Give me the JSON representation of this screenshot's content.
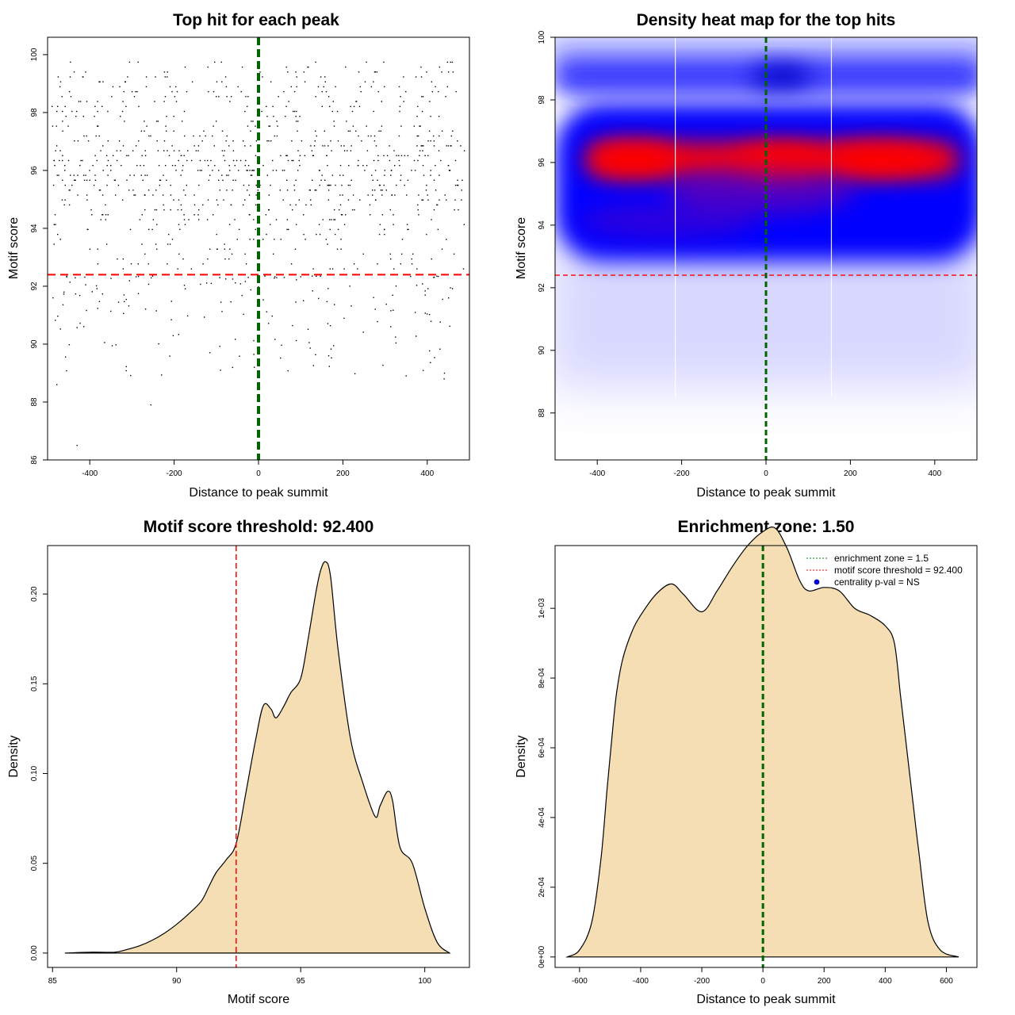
{
  "chart_data": [
    {
      "type": "scatter",
      "title": "Top hit for each peak",
      "xlabel": "Distance to peak summit",
      "ylabel": "Motif score",
      "xlim": [
        -500,
        500
      ],
      "ylim": [
        86,
        100.6
      ],
      "xticks": [
        -400,
        -200,
        0,
        200,
        400
      ],
      "yticks": [
        86,
        88,
        90,
        92,
        94,
        96,
        98,
        100
      ],
      "reference_lines": {
        "vertical_x": 0,
        "vertical_color": "#006400",
        "horizontal_y": 92.4,
        "horizontal_color": "#ff0000"
      },
      "point_color": "#000000",
      "point_summary": "about 3000 points spread across x -490 to 490, concentrated between scores 92.5 and 99.7 on discrete score levels; sparse points below 92.4 down to 86.5"
    },
    {
      "type": "heatmap",
      "title": "Density heat map for the top hits",
      "xlabel": "Distance to peak summit",
      "ylabel": "Motif score",
      "xlim": [
        -500,
        500
      ],
      "ylim": [
        86.5,
        100
      ],
      "xticks": [
        -400,
        -200,
        0,
        200,
        400
      ],
      "yticks": [
        88,
        90,
        92,
        94,
        96,
        98,
        100
      ],
      "colors": [
        "#ffffff",
        "#0000ff",
        "#ff0000"
      ],
      "density_summary": {
        "peak_band": {
          "y": 96.1,
          "level": "red",
          "x_from": -430,
          "x_to": 490
        },
        "high_band": {
          "y_from": 93.2,
          "y_to": 97.6,
          "level": "blue"
        },
        "upper_band": {
          "y": 98.8,
          "level": "blue"
        },
        "low_region": {
          "y_from": 86.5,
          "y_to": 92.5,
          "level": "light blue to white"
        }
      },
      "white_vertical_lines_x": [
        -215,
        155
      ],
      "reference_lines": {
        "vertical_x": 0,
        "vertical_color": "#006400",
        "horizontal_y": 92.4,
        "horizontal_color": "#ff0000"
      }
    },
    {
      "type": "area",
      "title": "Motif score threshold: 92.400",
      "xlabel": "Motif score",
      "ylabel": "Density",
      "xlim": [
        84.8,
        101.8
      ],
      "ylim": [
        -0.008,
        0.227
      ],
      "xticks": [
        85,
        90,
        95,
        100
      ],
      "yticks": [
        "0.00",
        "0.05",
        "0.10",
        "0.15",
        "0.20"
      ],
      "fill": "#f5deb3",
      "threshold_x": 92.4,
      "threshold_color": "#ff0000",
      "x": [
        85.5,
        86.5,
        87.5,
        88.0,
        88.5,
        89.0,
        89.5,
        90.0,
        90.5,
        91.0,
        91.3,
        91.6,
        92.0,
        92.4,
        92.8,
        93.2,
        93.5,
        93.8,
        94.0,
        94.3,
        94.6,
        95.0,
        95.3,
        95.6,
        95.8,
        96.0,
        96.2,
        96.5,
        97.0,
        97.5,
        98.0,
        98.2,
        98.5,
        98.7,
        99.0,
        99.5,
        100.0,
        100.5,
        101.0
      ],
      "y": [
        0.0,
        0.0005,
        0.0005,
        0.002,
        0.004,
        0.007,
        0.011,
        0.016,
        0.022,
        0.029,
        0.037,
        0.045,
        0.052,
        0.061,
        0.09,
        0.12,
        0.138,
        0.136,
        0.131,
        0.137,
        0.145,
        0.153,
        0.175,
        0.2,
        0.213,
        0.218,
        0.21,
        0.17,
        0.12,
        0.095,
        0.076,
        0.082,
        0.09,
        0.085,
        0.059,
        0.05,
        0.025,
        0.006,
        0.0
      ]
    },
    {
      "type": "area",
      "title": "Enrichment zone: 1.50",
      "xlabel": "Distance to peak summit",
      "ylabel": "Density",
      "xlim": [
        -680,
        700
      ],
      "ylim": [
        -3e-05,
        0.00118
      ],
      "xticks": [
        -600,
        -400,
        -200,
        0,
        200,
        400,
        600
      ],
      "yticks": [
        "0e+00",
        "2e-04",
        "4e-04",
        "6e-04",
        "8e-04",
        "1e-03"
      ],
      "fill": "#f5deb3",
      "vertical_x": 0,
      "vertical_color": "#006400",
      "legend": {
        "position": "top-right",
        "entries": [
          {
            "label": "enrichment zone = 1.5",
            "color": "#008000",
            "style": "dotted-line"
          },
          {
            "label": "motif score threshold = 92.400",
            "color": "#ff0000",
            "style": "dotted-line"
          },
          {
            "label": "centrality p-val = NS",
            "color": "#0000ff",
            "style": "point"
          }
        ]
      },
      "x": [
        -640,
        -600,
        -560,
        -530,
        -510,
        -495,
        -480,
        -460,
        -430,
        -400,
        -350,
        -300,
        -260,
        -200,
        -150,
        -100,
        -50,
        0,
        40,
        80,
        120,
        150,
        200,
        250,
        300,
        350,
        400,
        430,
        450,
        470,
        490,
        510,
        540,
        580,
        640
      ],
      "y": [
        0.0,
        2e-05,
        0.0001,
        0.00028,
        0.00048,
        0.00062,
        0.00075,
        0.00085,
        0.00093,
        0.00098,
        0.00104,
        0.00107,
        0.00104,
        0.00099,
        0.00105,
        0.00112,
        0.00118,
        0.00122,
        0.00123,
        0.00117,
        0.00108,
        0.00105,
        0.00106,
        0.00105,
        0.001,
        0.00098,
        0.00095,
        0.0009,
        0.00075,
        0.0006,
        0.00045,
        0.0003,
        0.0001,
        2e-05,
        0.0
      ]
    }
  ]
}
